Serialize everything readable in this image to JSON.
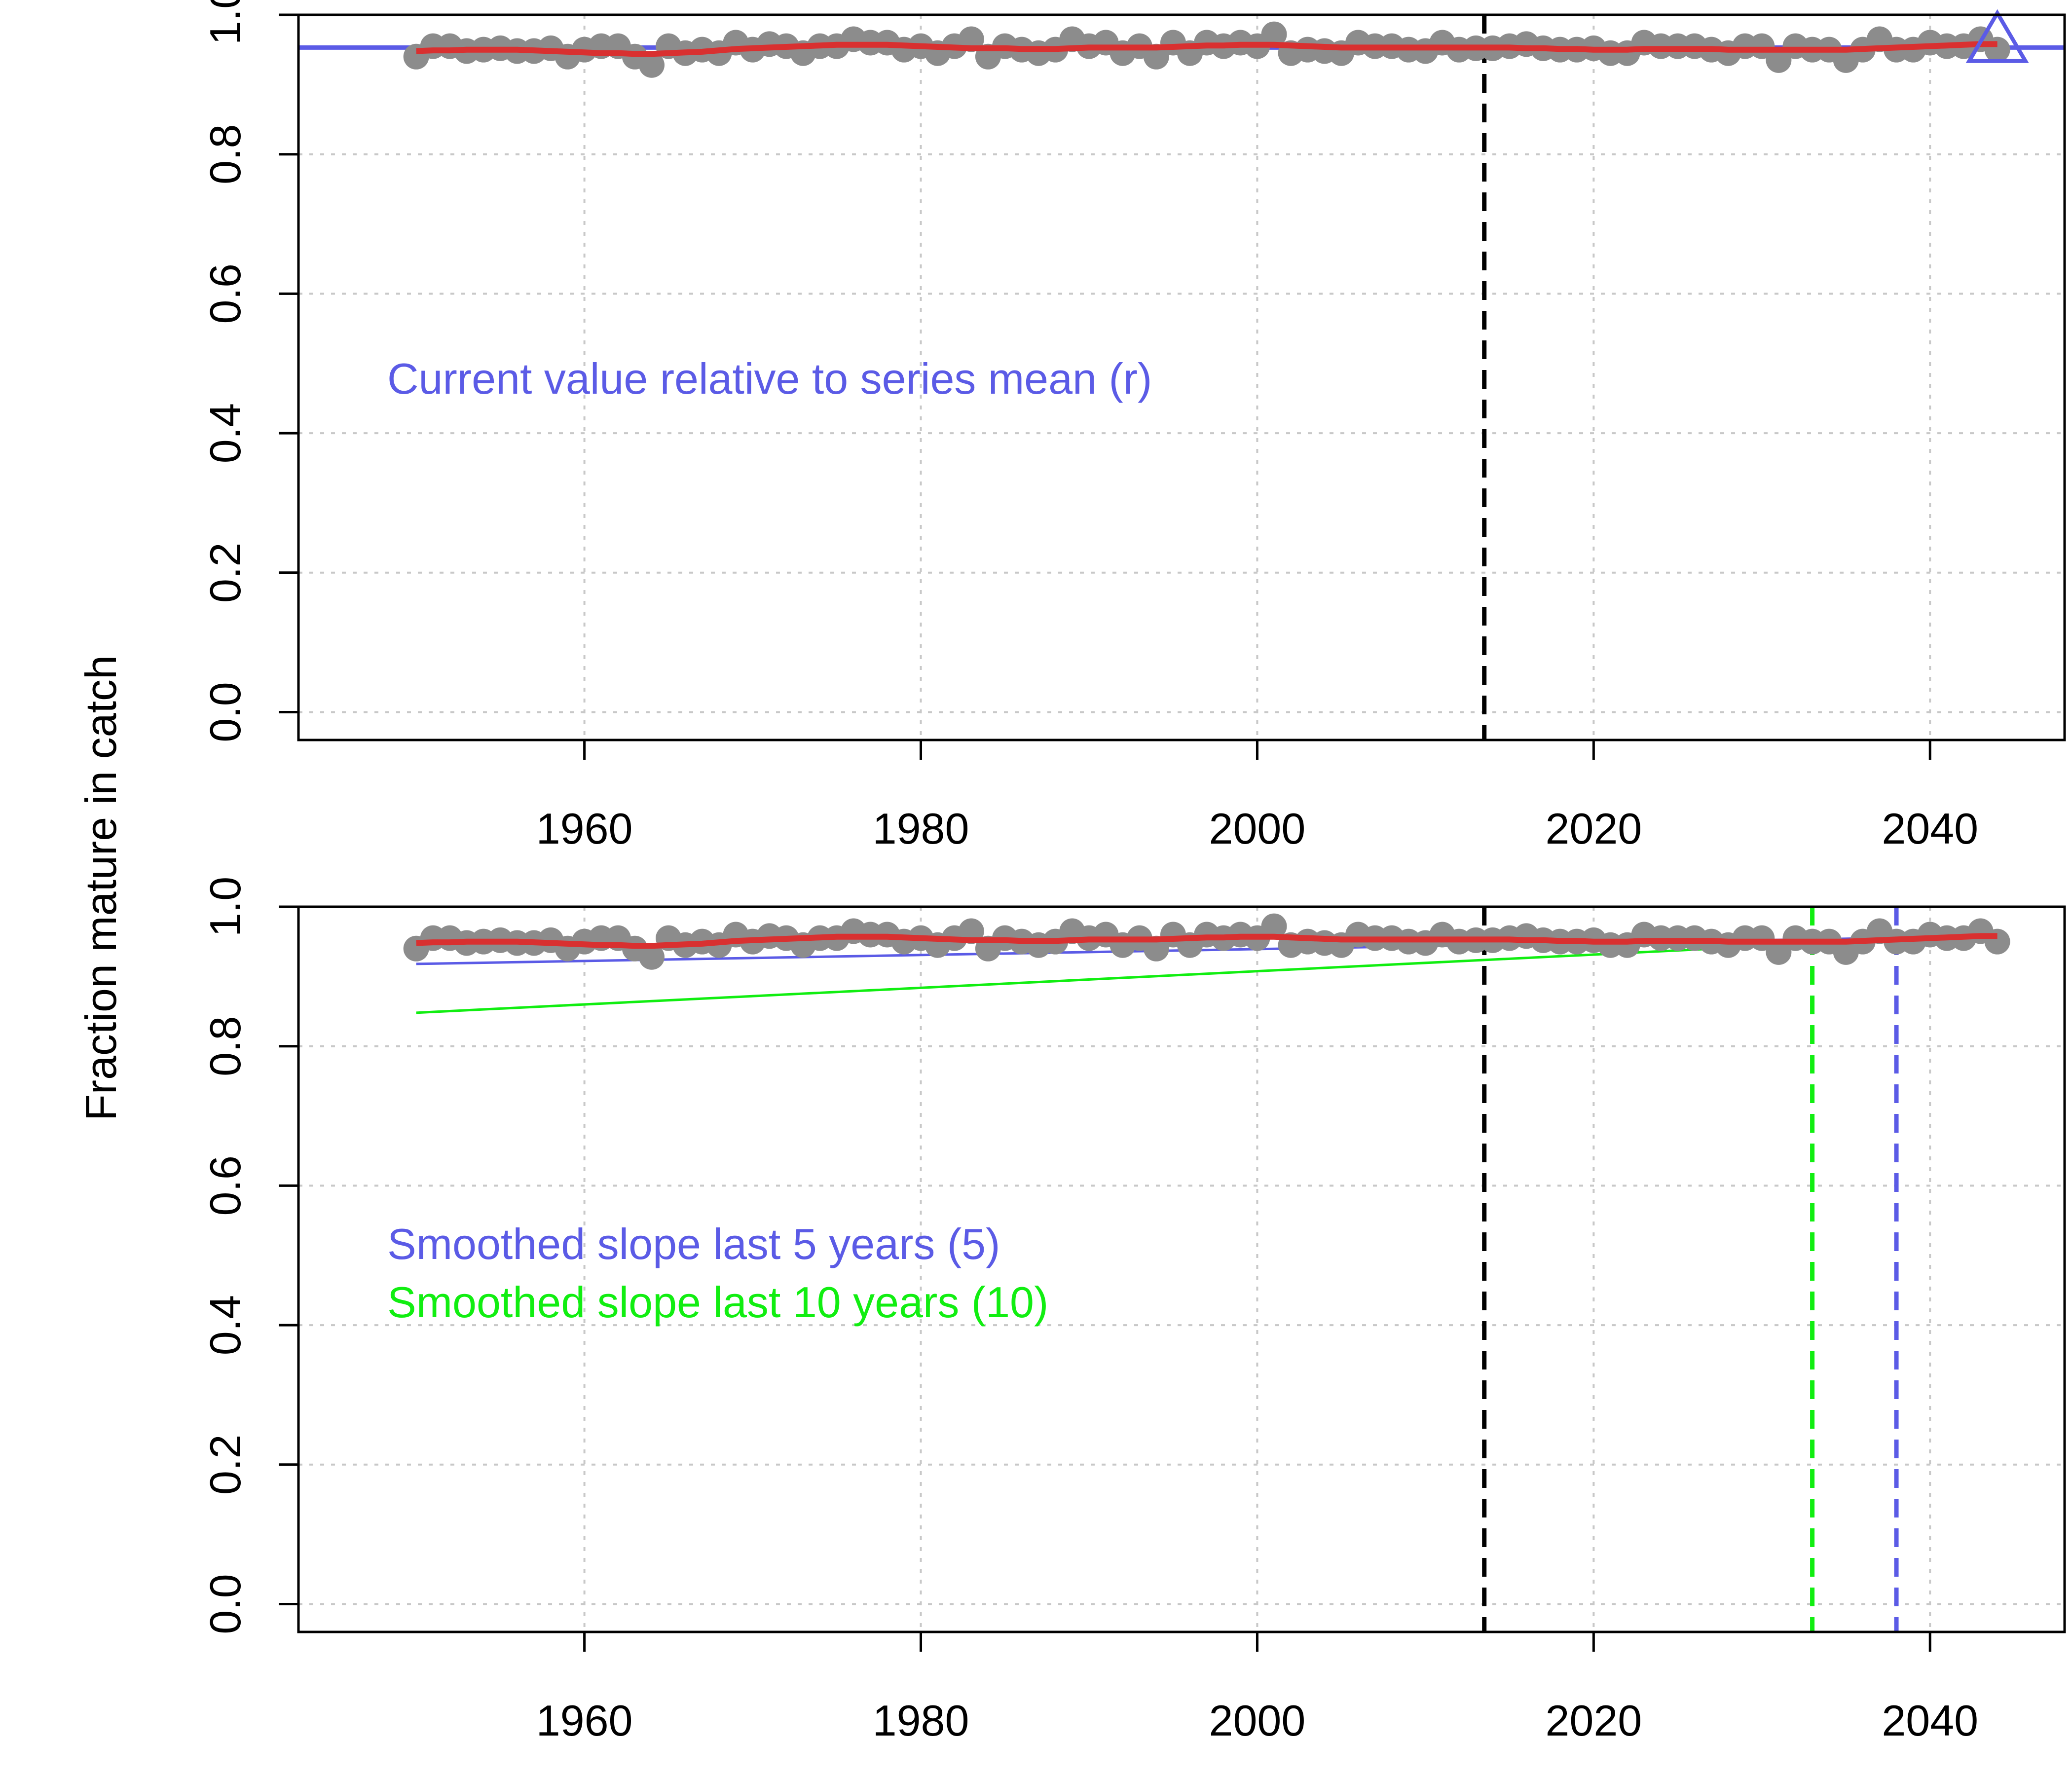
{
  "ylabel": "Fraction mature in catch",
  "colors": {
    "points": "#8c8c8c",
    "loess": "#d93030",
    "series_mean": "#5b5be6",
    "slope5": "#5b5be6",
    "slope10": "#11ee11",
    "last_data_year_line": "#000000",
    "grid": "#c8c8c8"
  },
  "chart_data": [
    {
      "panel": "top",
      "type": "scatter",
      "xlim": [
        1943,
        2048
      ],
      "ylim": [
        -0.04,
        1.0
      ],
      "xticks": [
        1960,
        1980,
        2000,
        2020,
        2040
      ],
      "yticks": [
        0.0,
        0.2,
        0.4,
        0.6,
        0.8,
        1.0
      ],
      "ytick_labels": [
        "0.0",
        "0.2",
        "0.4",
        "0.6",
        "0.8",
        "1.0"
      ],
      "grid": true,
      "annotation": "Current value relative to series mean (r)",
      "series_mean": 0.953,
      "current_marker": {
        "x": 2044,
        "y": 0.96,
        "shape": "triangle"
      },
      "vertical_lines": [
        {
          "x": 2013.5,
          "color": "last_data_year_line",
          "style": "dashed"
        }
      ]
    },
    {
      "panel": "bottom",
      "type": "scatter",
      "xlim": [
        1943,
        2048
      ],
      "ylim": [
        -0.04,
        1.0
      ],
      "xticks": [
        1960,
        1980,
        2000,
        2020,
        2040
      ],
      "yticks": [
        0.0,
        0.2,
        0.4,
        0.6,
        0.8,
        1.0
      ],
      "ytick_labels": [
        "0.0",
        "0.2",
        "0.4",
        "0.6",
        "0.8",
        "1.0"
      ],
      "grid": true,
      "annotations": [
        {
          "text": "Smoothed slope last 5 years (5)",
          "color": "slope5"
        },
        {
          "text": "Smoothed slope last 10 years (10)",
          "color": "slope10"
        }
      ],
      "slope_lines": [
        {
          "name": "5",
          "color": "slope5",
          "x": [
            1950,
            2044
          ],
          "y": [
            0.918,
            0.958
          ]
        },
        {
          "name": "10",
          "color": "slope10",
          "x": [
            1950,
            2044
          ],
          "y": [
            0.848,
            0.96
          ]
        }
      ],
      "vertical_lines": [
        {
          "x": 2013.5,
          "color": "last_data_year_line",
          "style": "dashed"
        },
        {
          "x": 2033,
          "color": "slope10",
          "style": "dashed"
        },
        {
          "x": 2038,
          "color": "slope5",
          "style": "dashed"
        }
      ]
    }
  ],
  "series": {
    "x": [
      1950,
      1951,
      1952,
      1953,
      1954,
      1955,
      1956,
      1957,
      1958,
      1959,
      1960,
      1961,
      1962,
      1963,
      1964,
      1965,
      1966,
      1967,
      1968,
      1969,
      1970,
      1971,
      1972,
      1973,
      1974,
      1975,
      1976,
      1977,
      1978,
      1979,
      1980,
      1981,
      1982,
      1983,
      1984,
      1985,
      1986,
      1987,
      1988,
      1989,
      1990,
      1991,
      1992,
      1993,
      1994,
      1995,
      1996,
      1997,
      1998,
      1999,
      2000,
      2001,
      2002,
      2003,
      2004,
      2005,
      2006,
      2007,
      2008,
      2009,
      2010,
      2011,
      2012,
      2013,
      2014,
      2015,
      2016,
      2017,
      2018,
      2019,
      2020,
      2021,
      2022,
      2023,
      2024,
      2025,
      2026,
      2027,
      2028,
      2029,
      2030,
      2031,
      2032,
      2033,
      2034,
      2035,
      2036,
      2037,
      2038,
      2039,
      2040,
      2041,
      2042,
      2043,
      2044
    ],
    "y": [
      0.94,
      0.955,
      0.955,
      0.948,
      0.95,
      0.952,
      0.948,
      0.948,
      0.952,
      0.94,
      0.95,
      0.955,
      0.955,
      0.94,
      0.928,
      0.955,
      0.945,
      0.95,
      0.945,
      0.96,
      0.95,
      0.958,
      0.955,
      0.945,
      0.955,
      0.955,
      0.965,
      0.96,
      0.96,
      0.95,
      0.955,
      0.945,
      0.955,
      0.965,
      0.94,
      0.955,
      0.95,
      0.945,
      0.95,
      0.965,
      0.955,
      0.96,
      0.945,
      0.955,
      0.94,
      0.96,
      0.945,
      0.96,
      0.955,
      0.96,
      0.955,
      0.972,
      0.945,
      0.95,
      0.948,
      0.945,
      0.96,
      0.955,
      0.955,
      0.95,
      0.948,
      0.96,
      0.95,
      0.952,
      0.952,
      0.955,
      0.958,
      0.952,
      0.95,
      0.95,
      0.952,
      0.945,
      0.945,
      0.96,
      0.955,
      0.955,
      0.955,
      0.95,
      0.945,
      0.955,
      0.955,
      0.935,
      0.955,
      0.95,
      0.95,
      0.935,
      0.95,
      0.965,
      0.95,
      0.95,
      0.96,
      0.955,
      0.955,
      0.965,
      0.95
    ],
    "loess_y": [
      0.948,
      0.949,
      0.949,
      0.95,
      0.95,
      0.95,
      0.95,
      0.949,
      0.948,
      0.947,
      0.946,
      0.945,
      0.945,
      0.944,
      0.944,
      0.945,
      0.946,
      0.947,
      0.949,
      0.951,
      0.952,
      0.953,
      0.954,
      0.955,
      0.956,
      0.957,
      0.957,
      0.957,
      0.957,
      0.956,
      0.955,
      0.954,
      0.953,
      0.952,
      0.952,
      0.952,
      0.951,
      0.951,
      0.951,
      0.952,
      0.953,
      0.953,
      0.953,
      0.953,
      0.953,
      0.954,
      0.955,
      0.956,
      0.956,
      0.957,
      0.957,
      0.957,
      0.956,
      0.955,
      0.954,
      0.953,
      0.953,
      0.953,
      0.953,
      0.953,
      0.953,
      0.953,
      0.953,
      0.953,
      0.953,
      0.953,
      0.952,
      0.952,
      0.951,
      0.951,
      0.95,
      0.95,
      0.95,
      0.951,
      0.951,
      0.951,
      0.951,
      0.951,
      0.95,
      0.95,
      0.95,
      0.95,
      0.95,
      0.95,
      0.95,
      0.95,
      0.951,
      0.952,
      0.953,
      0.954,
      0.955,
      0.956,
      0.957,
      0.958,
      0.958
    ]
  }
}
